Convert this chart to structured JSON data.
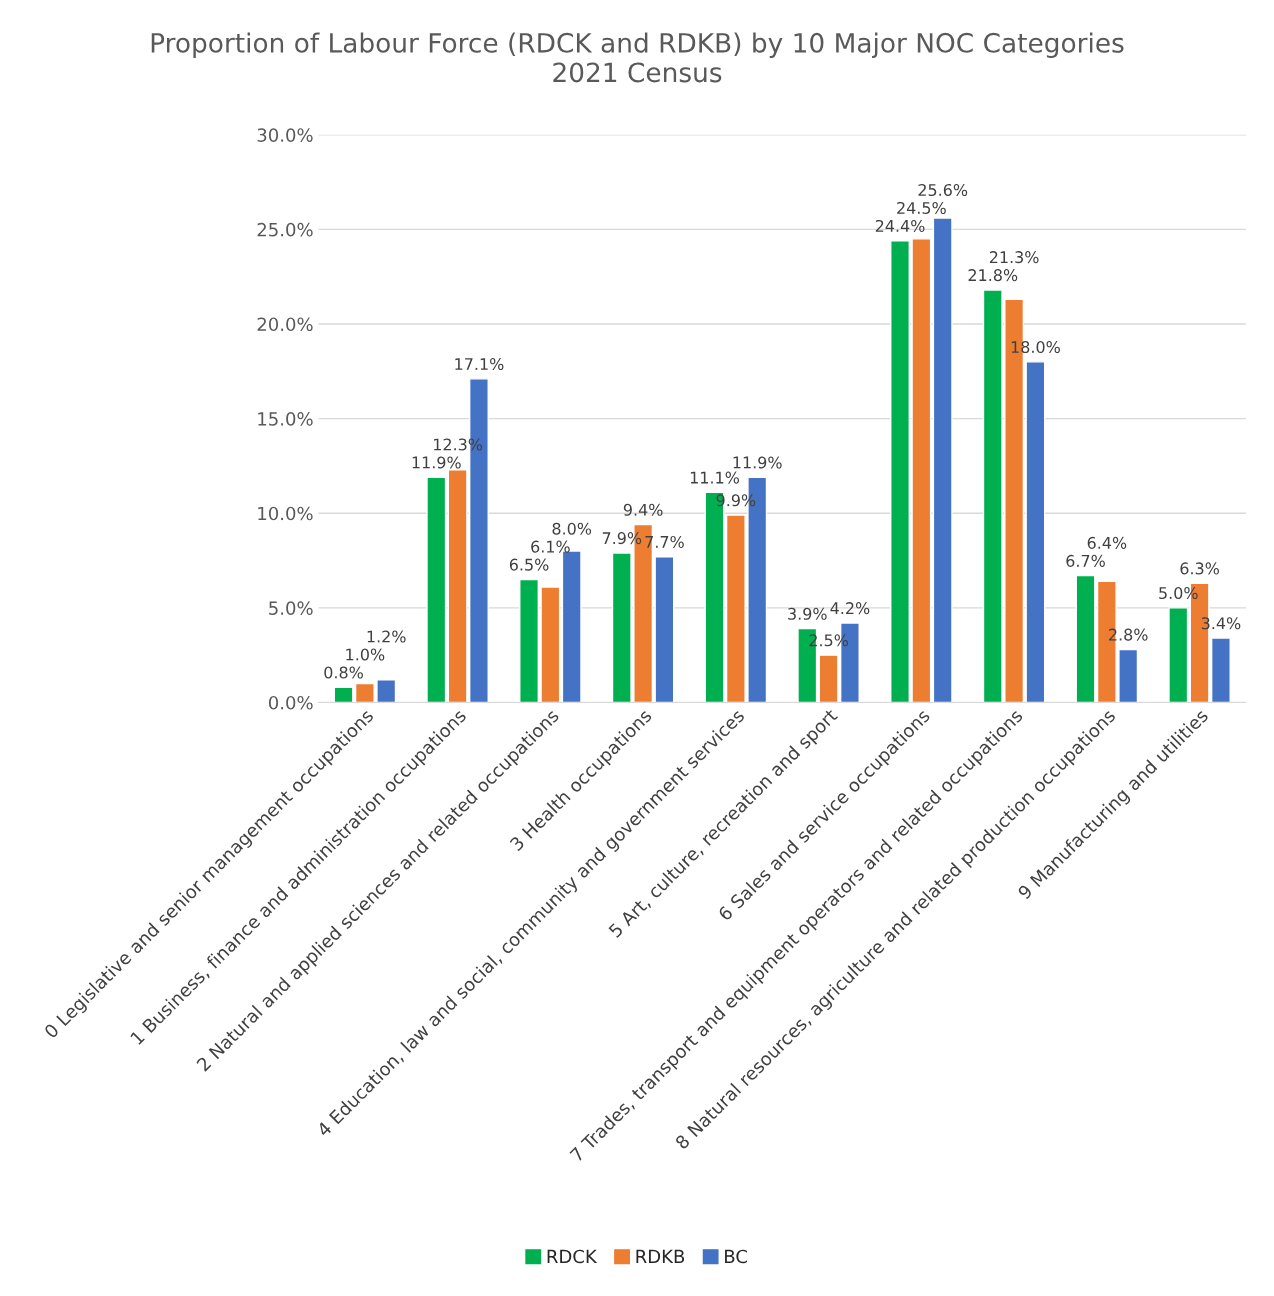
{
  "chart_data": {
    "type": "bar",
    "title": "Proportion of Labour Force (RDCK and RDKB) by 10 Major NOC Categories\n2021 Census",
    "categories": [
      "0 Legislative and senior management occupations",
      "1 Business, finance and administration occupations",
      "2 Natural and applied sciences and related occupations",
      "3 Health occupations",
      "4 Education, law and social, community and government services",
      "5 Art, culture, recreation and sport",
      "6 Sales and service occupations",
      "7 Trades, transport and equipment operators and related occupations",
      "8 Natural resources, agriculture and related production occupations",
      "9 Manufacturing and utilities"
    ],
    "series": [
      {
        "name": "RDCK",
        "color": "#00b050",
        "values": [
          0.8,
          11.9,
          6.5,
          7.9,
          11.1,
          3.9,
          24.4,
          21.8,
          6.7,
          5.0
        ],
        "value_labels": [
          "0.8%",
          "11.9%",
          "6.5%",
          "7.9%",
          "11.1%",
          "3.9%",
          "24.4%",
          "21.8%",
          "6.7%",
          "5.0%"
        ]
      },
      {
        "name": "RDKB",
        "color": "#ed7d31",
        "values": [
          1.0,
          12.3,
          6.1,
          9.4,
          9.9,
          2.5,
          24.5,
          21.3,
          6.4,
          6.3
        ],
        "value_labels": [
          "1.0%",
          "12.3%",
          "6.1%",
          "9.4%",
          "9.9%",
          "2.5%",
          "24.5%",
          "21.3%",
          "6.4%",
          "6.3%"
        ]
      },
      {
        "name": "BC",
        "color": "#4472c4",
        "values": [
          1.2,
          17.1,
          8.0,
          7.7,
          11.9,
          4.2,
          25.6,
          18.0,
          2.8,
          3.4
        ],
        "value_labels": [
          "1.2%",
          "17.1%",
          "8.0%",
          "7.7%",
          "11.9%",
          "4.2%",
          "25.6%",
          "18.0%",
          "2.8%",
          "3.4%"
        ]
      }
    ],
    "ylim": [
      0,
      30
    ],
    "yticks": [
      {
        "value": 0,
        "label": "0.0%"
      },
      {
        "value": 5,
        "label": "5.0%"
      },
      {
        "value": 10,
        "label": "10.0%"
      },
      {
        "value": 15,
        "label": "15.0%"
      },
      {
        "value": 20,
        "label": "20.0%"
      },
      {
        "value": 25,
        "label": "25.0%"
      },
      {
        "value": 30,
        "label": "30.0%"
      }
    ],
    "grid": "y",
    "legend": "bottom"
  }
}
